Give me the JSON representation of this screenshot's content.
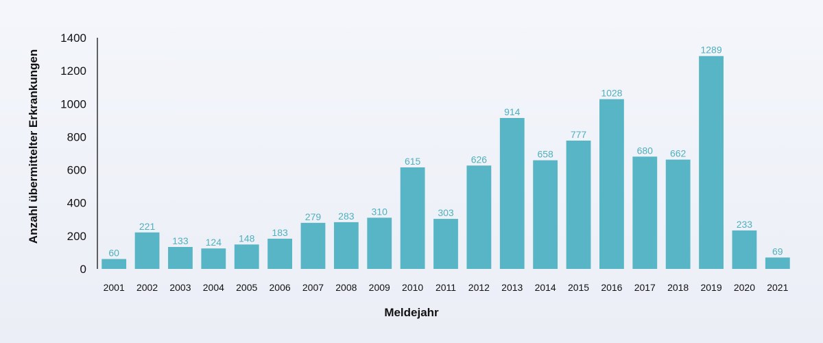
{
  "chart_data": {
    "type": "bar",
    "title": "",
    "xlabel": "Meldejahr",
    "ylabel": "Anzahl übermittelter Erkrankungen",
    "categories": [
      "2001",
      "2002",
      "2003",
      "2004",
      "2005",
      "2006",
      "2007",
      "2008",
      "2009",
      "2010",
      "2011",
      "2012",
      "2013",
      "2014",
      "2015",
      "2016",
      "2017",
      "2018",
      "2019",
      "2020",
      "2021"
    ],
    "values": [
      60,
      221,
      133,
      124,
      148,
      183,
      279,
      283,
      310,
      615,
      303,
      626,
      914,
      658,
      777,
      1028,
      680,
      662,
      1289,
      233,
      69
    ],
    "ylim": [
      0,
      1400
    ],
    "yticks": [
      0,
      200,
      400,
      600,
      800,
      1000,
      1200,
      1400
    ],
    "grid": false,
    "bar_color": "#57b5c6",
    "label_color": "#4fb0c0"
  }
}
